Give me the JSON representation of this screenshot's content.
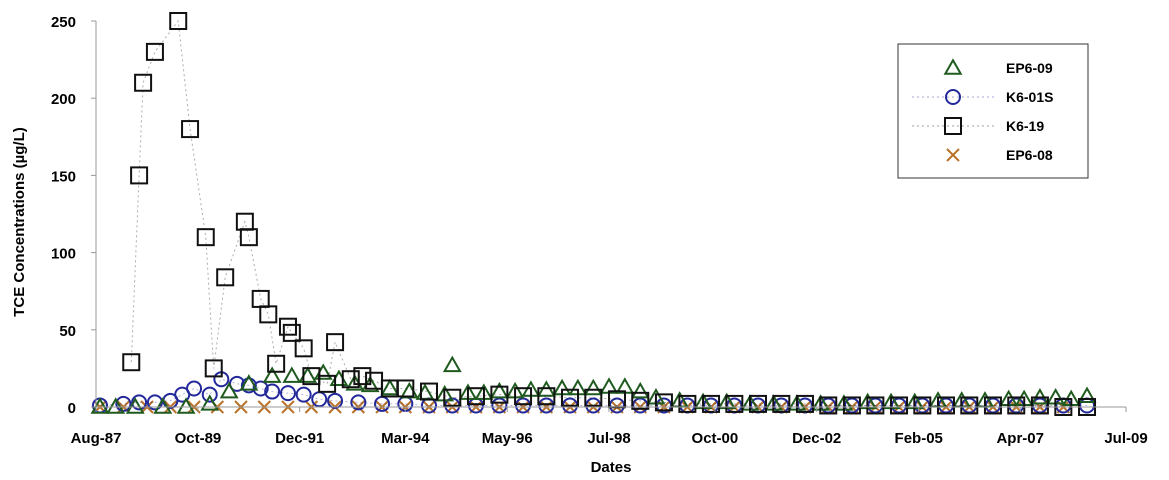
{
  "chart_data": {
    "type": "scatter",
    "title": "",
    "xlabel": "Dates",
    "ylabel": "TCE Concentrations (µg/L)",
    "x_scale": "date",
    "xlim": [
      "1987-08-01",
      "2009-07-01"
    ],
    "ylim": [
      0,
      250
    ],
    "grid": false,
    "legend_position": "top-right",
    "x_ticks": [
      {
        "label": "Aug-87",
        "date": "1987-08-01"
      },
      {
        "label": "Oct-89",
        "date": "1989-10-01"
      },
      {
        "label": "Dec-91",
        "date": "1991-12-01"
      },
      {
        "label": "Mar-94",
        "date": "1994-03-01"
      },
      {
        "label": "May-96",
        "date": "1996-05-01"
      },
      {
        "label": "Jul-98",
        "date": "1998-07-01"
      },
      {
        "label": "Oct-00",
        "date": "2000-10-01"
      },
      {
        "label": "Dec-02",
        "date": "2002-12-01"
      },
      {
        "label": "Feb-05",
        "date": "2005-02-01"
      },
      {
        "label": "Apr-07",
        "date": "2007-04-01"
      },
      {
        "label": "Jul-09",
        "date": "2009-07-01"
      }
    ],
    "y_ticks": [
      "0",
      "50",
      "100",
      "150",
      "200",
      "250"
    ],
    "series": [
      {
        "name": "EP6-09",
        "marker": "triangle",
        "color": "#1f5a1f",
        "line_style": "none",
        "points": [
          [
            "1987-09-01",
            0
          ],
          [
            "1988-01-01",
            0
          ],
          [
            "1988-06-01",
            0
          ],
          [
            "1989-01-01",
            0
          ],
          [
            "1989-07-01",
            0
          ],
          [
            "1990-01-01",
            2
          ],
          [
            "1990-06-01",
            10
          ],
          [
            "1990-11-01",
            15
          ],
          [
            "1991-05-01",
            20
          ],
          [
            "1991-10-01",
            20
          ],
          [
            "1992-02-01",
            20
          ],
          [
            "1992-06-01",
            22
          ],
          [
            "1992-10-01",
            18
          ],
          [
            "1993-02-01",
            15
          ],
          [
            "1993-06-01",
            14
          ],
          [
            "1993-11-01",
            12
          ],
          [
            "1994-04-01",
            10
          ],
          [
            "1994-08-01",
            9
          ],
          [
            "1995-01-01",
            8
          ],
          [
            "1995-03-01",
            27
          ],
          [
            "1995-07-01",
            9
          ],
          [
            "1995-11-01",
            9
          ],
          [
            "1996-03-01",
            10
          ],
          [
            "1996-07-01",
            10
          ],
          [
            "1996-11-01",
            11
          ],
          [
            "1997-03-01",
            11
          ],
          [
            "1997-07-01",
            12
          ],
          [
            "1997-11-01",
            12
          ],
          [
            "1998-03-01",
            12
          ],
          [
            "1998-07-01",
            13
          ],
          [
            "1998-11-01",
            13
          ],
          [
            "1999-03-01",
            10
          ],
          [
            "1999-07-01",
            6
          ],
          [
            "2000-01-01",
            4
          ],
          [
            "2000-07-01",
            3
          ],
          [
            "2001-01-01",
            3
          ],
          [
            "2001-07-01",
            2
          ],
          [
            "2002-01-01",
            2
          ],
          [
            "2002-07-01",
            2
          ],
          [
            "2003-01-01",
            2
          ],
          [
            "2003-07-01",
            2
          ],
          [
            "2004-01-01",
            3
          ],
          [
            "2004-07-01",
            3
          ],
          [
            "2005-01-01",
            3
          ],
          [
            "2005-07-01",
            4
          ],
          [
            "2006-01-01",
            4
          ],
          [
            "2006-07-01",
            4
          ],
          [
            "2007-01-01",
            5
          ],
          [
            "2007-05-01",
            5
          ],
          [
            "2007-09-01",
            6
          ],
          [
            "2008-01-01",
            6
          ],
          [
            "2008-05-01",
            5
          ],
          [
            "2008-09-01",
            7
          ]
        ]
      },
      {
        "name": "K6-01S",
        "marker": "circle",
        "color": "#23299a",
        "line_style": "dotted",
        "points": [
          [
            "1987-09-01",
            1
          ],
          [
            "1988-03-01",
            2
          ],
          [
            "1988-07-01",
            3
          ],
          [
            "1988-11-01",
            3
          ],
          [
            "1989-03-01",
            4
          ],
          [
            "1989-06-01",
            8
          ],
          [
            "1989-09-01",
            12
          ],
          [
            "1990-01-01",
            8
          ],
          [
            "1990-04-01",
            18
          ],
          [
            "1990-08-01",
            15
          ],
          [
            "1990-11-01",
            14
          ],
          [
            "1991-02-01",
            12
          ],
          [
            "1991-05-01",
            10
          ],
          [
            "1991-09-01",
            9
          ],
          [
            "1992-01-01",
            8
          ],
          [
            "1992-05-01",
            5
          ],
          [
            "1992-09-01",
            4
          ],
          [
            "1993-03-01",
            3
          ],
          [
            "1993-09-01",
            2
          ],
          [
            "1994-03-01",
            2
          ],
          [
            "1994-09-01",
            1
          ],
          [
            "1995-03-01",
            1
          ],
          [
            "1995-09-01",
            1
          ],
          [
            "1996-03-01",
            1
          ],
          [
            "1996-09-01",
            1
          ],
          [
            "1997-03-01",
            1
          ],
          [
            "1997-09-01",
            1
          ],
          [
            "1998-03-01",
            1
          ],
          [
            "1998-09-01",
            1
          ],
          [
            "1999-03-01",
            1
          ],
          [
            "1999-09-01",
            1
          ],
          [
            "2000-03-01",
            1
          ],
          [
            "2000-09-01",
            1
          ],
          [
            "2001-03-01",
            1
          ],
          [
            "2001-09-01",
            1
          ],
          [
            "2002-03-01",
            1
          ],
          [
            "2002-09-01",
            1
          ],
          [
            "2003-03-01",
            1
          ],
          [
            "2003-09-01",
            1
          ],
          [
            "2004-03-01",
            1
          ],
          [
            "2004-09-01",
            1
          ],
          [
            "2005-03-01",
            1
          ],
          [
            "2005-09-01",
            1
          ],
          [
            "2006-03-01",
            1
          ],
          [
            "2006-09-01",
            1
          ],
          [
            "2007-03-01",
            1
          ],
          [
            "2007-09-01",
            1
          ],
          [
            "2008-03-01",
            1
          ],
          [
            "2008-09-01",
            1
          ]
        ]
      },
      {
        "name": "K6-19",
        "marker": "square",
        "color": "#111111",
        "line_style": "dotted",
        "points": [
          [
            "1988-05-01",
            29
          ],
          [
            "1988-07-01",
            150
          ],
          [
            "1988-08-01",
            210
          ],
          [
            "1988-11-01",
            230
          ],
          [
            "1989-05-01",
            250
          ],
          [
            "1989-08-01",
            180
          ],
          [
            "1989-12-01",
            110
          ],
          [
            "1990-02-01",
            25
          ],
          [
            "1990-05-01",
            84
          ],
          [
            "1990-10-01",
            120
          ],
          [
            "1990-11-01",
            110
          ],
          [
            "1991-02-01",
            70
          ],
          [
            "1991-04-01",
            60
          ],
          [
            "1991-06-01",
            28
          ],
          [
            "1991-09-01",
            52
          ],
          [
            "1991-10-01",
            48
          ],
          [
            "1992-01-01",
            38
          ],
          [
            "1992-03-01",
            20
          ],
          [
            "1992-07-01",
            15
          ],
          [
            "1992-09-01",
            42
          ],
          [
            "1993-01-01",
            18
          ],
          [
            "1993-04-01",
            20
          ],
          [
            "1993-07-01",
            17
          ],
          [
            "1993-11-01",
            12
          ],
          [
            "1994-03-01",
            12
          ],
          [
            "1994-09-01",
            10
          ],
          [
            "1995-03-01",
            6
          ],
          [
            "1995-09-01",
            7
          ],
          [
            "1996-03-01",
            8
          ],
          [
            "1996-09-01",
            7
          ],
          [
            "1997-03-01",
            7
          ],
          [
            "1997-09-01",
            6
          ],
          [
            "1998-03-01",
            6
          ],
          [
            "1998-09-01",
            5
          ],
          [
            "1999-03-01",
            4
          ],
          [
            "1999-09-01",
            3
          ],
          [
            "2000-03-01",
            2
          ],
          [
            "2000-09-01",
            2
          ],
          [
            "2001-03-01",
            2
          ],
          [
            "2001-09-01",
            2
          ],
          [
            "2002-03-01",
            2
          ],
          [
            "2002-09-01",
            2
          ],
          [
            "2003-03-01",
            1
          ],
          [
            "2003-09-01",
            1
          ],
          [
            "2004-03-01",
            1
          ],
          [
            "2004-09-01",
            1
          ],
          [
            "2005-03-01",
            1
          ],
          [
            "2005-09-01",
            1
          ],
          [
            "2006-03-01",
            1
          ],
          [
            "2006-09-01",
            1
          ],
          [
            "2007-03-01",
            1
          ],
          [
            "2007-09-01",
            1
          ],
          [
            "2008-03-01",
            0
          ],
          [
            "2008-09-01",
            0
          ]
        ]
      },
      {
        "name": "EP6-08",
        "marker": "x",
        "color": "#b8722a",
        "line_style": "none",
        "points": [
          [
            "1987-09-01",
            0
          ],
          [
            "1988-03-01",
            0
          ],
          [
            "1988-09-01",
            0
          ],
          [
            "1989-03-01",
            0
          ],
          [
            "1989-09-01",
            0
          ],
          [
            "1990-03-01",
            0
          ],
          [
            "1990-09-01",
            0
          ],
          [
            "1991-03-01",
            0
          ],
          [
            "1991-09-01",
            0
          ],
          [
            "1992-03-01",
            0
          ],
          [
            "1992-09-01",
            0
          ],
          [
            "1993-03-01",
            0
          ],
          [
            "1993-09-01",
            0
          ],
          [
            "1994-03-01",
            0
          ],
          [
            "1994-09-01",
            0
          ],
          [
            "1995-03-01",
            0
          ],
          [
            "1995-09-01",
            0
          ],
          [
            "1996-03-01",
            0
          ],
          [
            "1996-09-01",
            0
          ],
          [
            "1997-03-01",
            0
          ],
          [
            "1997-09-01",
            0
          ],
          [
            "1998-03-01",
            0
          ],
          [
            "1998-09-01",
            0
          ],
          [
            "1999-03-01",
            0
          ],
          [
            "1999-09-01",
            0
          ],
          [
            "2000-03-01",
            0
          ],
          [
            "2000-09-01",
            0
          ],
          [
            "2001-03-01",
            0
          ],
          [
            "2001-09-01",
            0
          ],
          [
            "2002-03-01",
            0
          ],
          [
            "2002-09-01",
            0
          ],
          [
            "2003-03-01",
            0
          ],
          [
            "2003-09-01",
            0
          ],
          [
            "2004-03-01",
            0
          ],
          [
            "2004-09-01",
            0
          ],
          [
            "2005-03-01",
            0
          ],
          [
            "2005-09-01",
            0
          ],
          [
            "2006-03-01",
            0
          ],
          [
            "2006-09-01",
            0
          ],
          [
            "2007-03-01",
            0
          ],
          [
            "2007-09-01",
            0
          ],
          [
            "2008-03-01",
            0
          ]
        ]
      }
    ]
  }
}
